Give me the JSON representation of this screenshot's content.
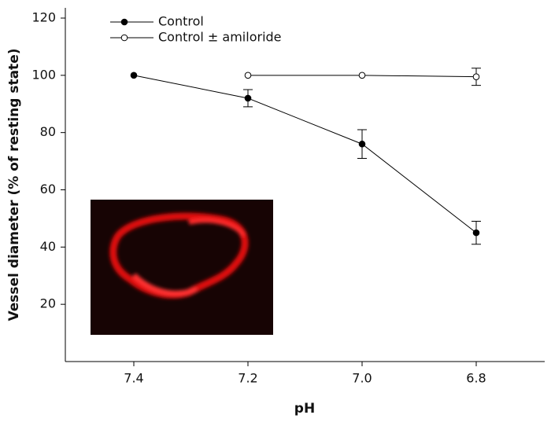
{
  "chart_data": {
    "type": "line",
    "y_label": "Vessel diameter (% of resting state)",
    "x_label": "pH",
    "categories": [
      "7.4",
      "7.2",
      "7.0",
      "6.8"
    ],
    "series": [
      {
        "name": "Control",
        "color": "#000000",
        "marker": "filled",
        "values": [
          100,
          92,
          76,
          45
        ],
        "errors": [
          null,
          3,
          5,
          4
        ]
      },
      {
        "name": "Control ± amiloride",
        "color": "#000000",
        "marker": "open",
        "values": [
          null,
          100,
          100,
          99.5
        ],
        "errors": [
          null,
          null,
          null,
          3
        ]
      }
    ],
    "ylim": [
      0,
      120
    ],
    "yticks": [
      20,
      40,
      60,
      80,
      100,
      120
    ],
    "grid": false
  }
}
